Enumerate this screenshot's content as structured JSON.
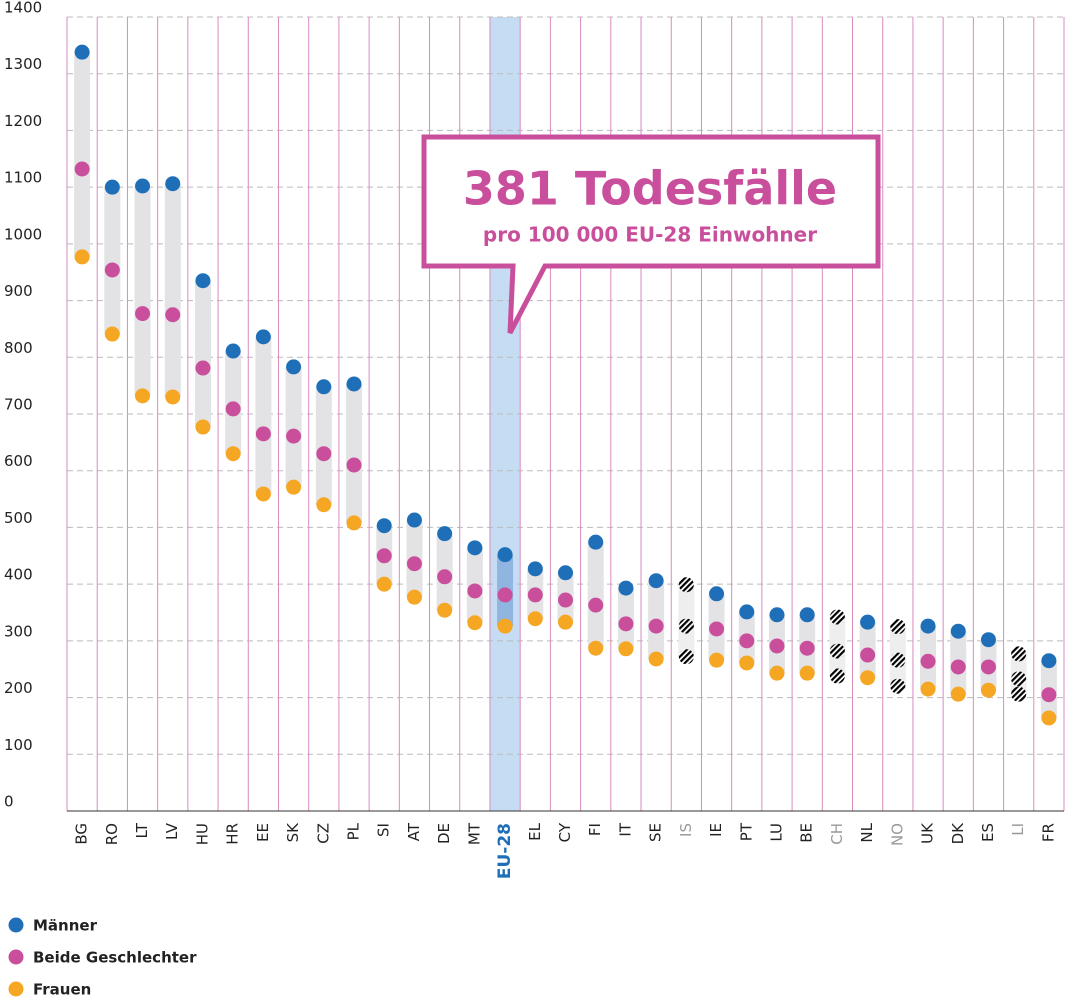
{
  "chart_data": {
    "type": "dot_range",
    "annotation": {
      "title": "381 Todesfälle",
      "subtitle": "pro 100 000 EU-28 Einwohner"
    },
    "categories": [
      "BG",
      "RO",
      "LT",
      "LV",
      "HU",
      "HR",
      "EE",
      "SK",
      "CZ",
      "PL",
      "SI",
      "AT",
      "DE",
      "MT",
      "EU-28",
      "EL",
      "CY",
      "FI",
      "IT",
      "SE",
      "IS",
      "IE",
      "PT",
      "LU",
      "BE",
      "CH",
      "NL",
      "NO",
      "UK",
      "DK",
      "ES",
      "LI",
      "FR"
    ],
    "series": [
      {
        "name": "Männer",
        "color": "#1f6fb8",
        "values": [
          1338,
          1100,
          1102,
          1106,
          935,
          811,
          836,
          783,
          748,
          753,
          503,
          513,
          489,
          464,
          452,
          427,
          420,
          474,
          393,
          406,
          399,
          383,
          351,
          346,
          346,
          342,
          333,
          325,
          326,
          317,
          302,
          277,
          265
        ]
      },
      {
        "name": "Beide Geschlechter",
        "color": "#c94f9c",
        "values": [
          1132,
          954,
          877,
          875,
          781,
          709,
          665,
          661,
          630,
          610,
          450,
          436,
          413,
          388,
          381,
          381,
          372,
          363,
          330,
          326,
          326,
          321,
          300,
          291,
          287,
          282,
          275,
          266,
          264,
          254,
          254,
          233,
          205
        ]
      },
      {
        "name": "Frauen",
        "color": "#f5a623",
        "values": [
          977,
          841,
          732,
          730,
          677,
          630,
          559,
          571,
          540,
          508,
          400,
          377,
          354,
          332,
          326,
          339,
          333,
          287,
          286,
          268,
          272,
          266,
          261,
          243,
          243,
          238,
          235,
          220,
          215,
          206,
          213,
          206,
          164
        ]
      }
    ],
    "highlight": 14,
    "hatched": [
      20,
      25,
      27,
      31
    ],
    "ylim": [
      0,
      1400
    ],
    "yticks": [
      0,
      100,
      200,
      300,
      400,
      500,
      600,
      700,
      800,
      900,
      1000,
      1100,
      1200,
      1300,
      1400
    ],
    "grid": true
  }
}
